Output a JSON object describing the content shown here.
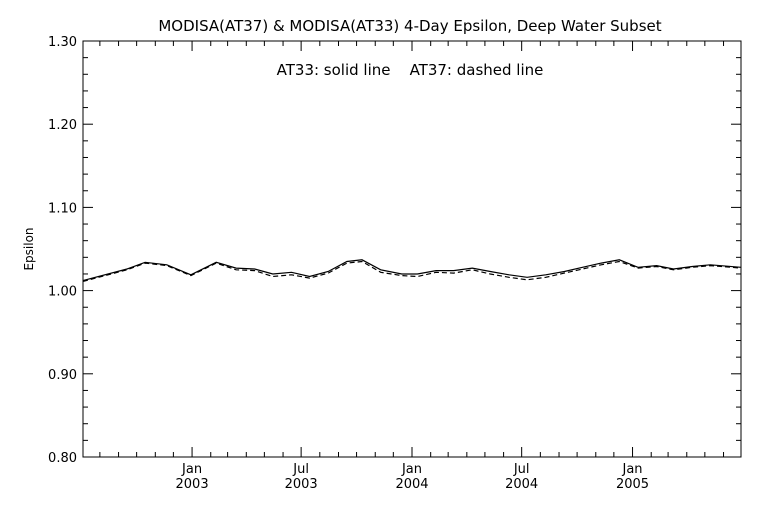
{
  "chart_data": {
    "type": "line",
    "title": "MODISA(AT37) & MODISA(AT33) 4-Day Epsilon, Deep Water Subset",
    "annotation": "AT33: solid line    AT37: dashed line",
    "ylabel": "Epsilon",
    "xlabel": "",
    "ylim": [
      0.8,
      1.3
    ],
    "xlim": [
      "2002-07-04",
      "2005-06-30"
    ],
    "grid": false,
    "y_ticks": [
      "0.80",
      "0.90",
      "1.00",
      "1.10",
      "1.20",
      "1.30"
    ],
    "x_ticks": [
      {
        "date": "2003-01-01",
        "label_top": "Jan",
        "label_bottom": "2003"
      },
      {
        "date": "2003-07-01",
        "label_top": "Jul",
        "label_bottom": "2003"
      },
      {
        "date": "2004-01-01",
        "label_top": "Jan",
        "label_bottom": "2004"
      },
      {
        "date": "2004-07-01",
        "label_top": "Jul",
        "label_bottom": "2004"
      },
      {
        "date": "2005-01-01",
        "label_top": "Jan",
        "label_bottom": "2005"
      }
    ],
    "x": [
      "2002-07-04",
      "2002-09-15",
      "2002-10-15",
      "2002-11-20",
      "2002-12-30",
      "2003-02-10",
      "2003-03-15",
      "2003-04-15",
      "2003-05-15",
      "2003-06-15",
      "2003-07-15",
      "2003-08-15",
      "2003-09-15",
      "2003-10-10",
      "2003-11-10",
      "2003-12-15",
      "2004-01-10",
      "2004-02-10",
      "2004-03-10",
      "2004-04-10",
      "2004-05-10",
      "2004-06-10",
      "2004-07-10",
      "2004-08-10",
      "2004-09-10",
      "2004-10-10",
      "2004-11-10",
      "2004-12-10",
      "2005-01-10",
      "2005-02-10",
      "2005-03-10",
      "2005-04-10",
      "2005-05-10",
      "2005-06-30"
    ],
    "series": [
      {
        "name": "AT33",
        "style": "solid",
        "values": [
          1.012,
          1.026,
          1.034,
          1.031,
          1.019,
          1.034,
          1.027,
          1.026,
          1.02,
          1.022,
          1.017,
          1.023,
          1.035,
          1.037,
          1.025,
          1.02,
          1.02,
          1.024,
          1.024,
          1.027,
          1.023,
          1.019,
          1.016,
          1.019,
          1.023,
          1.028,
          1.033,
          1.037,
          1.028,
          1.03,
          1.026,
          1.029,
          1.031,
          1.028
        ]
      },
      {
        "name": "AT37",
        "style": "dashed",
        "values": [
          1.011,
          1.025,
          1.033,
          1.03,
          1.018,
          1.033,
          1.025,
          1.024,
          1.017,
          1.019,
          1.015,
          1.021,
          1.033,
          1.035,
          1.022,
          1.018,
          1.017,
          1.022,
          1.021,
          1.025,
          1.02,
          1.016,
          1.013,
          1.016,
          1.021,
          1.026,
          1.031,
          1.035,
          1.027,
          1.029,
          1.025,
          1.028,
          1.03,
          1.027
        ]
      }
    ]
  }
}
